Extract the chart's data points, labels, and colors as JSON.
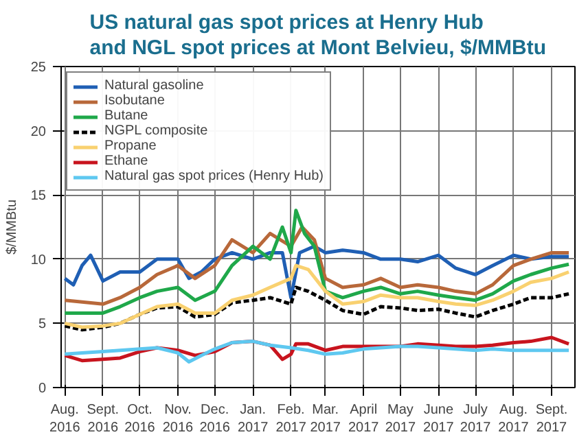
{
  "chart_data": {
    "type": "line",
    "title": "US natural gas spot prices at Henry Hub\nand NGL spot prices at Mont Belvieu, $/MMBtu",
    "ylabel": "$/MMBtu",
    "series": [
      {
        "name": "Natural gasoline",
        "color": "#1f5fb4",
        "x": [
          "2016-08-01",
          "2016-08-08",
          "2016-08-15",
          "2016-08-22",
          "2016-09-01",
          "2016-09-15",
          "2016-10-01",
          "2016-10-15",
          "2016-11-01",
          "2016-11-10",
          "2016-11-20",
          "2016-12-01",
          "2016-12-15",
          "2017-01-01",
          "2017-01-15",
          "2017-01-25",
          "2017-02-01",
          "2017-02-08",
          "2017-02-20",
          "2017-03-01",
          "2017-03-15",
          "2017-04-01",
          "2017-04-15",
          "2017-05-01",
          "2017-05-15",
          "2017-06-01",
          "2017-06-15",
          "2017-07-01",
          "2017-07-15",
          "2017-08-01",
          "2017-08-15",
          "2017-09-01",
          "2017-09-15"
        ],
        "values": [
          8.5,
          8.0,
          9.5,
          10.3,
          8.3,
          9.0,
          9.0,
          10.0,
          10.0,
          8.5,
          9.0,
          10.0,
          10.5,
          10.0,
          10.5,
          10.5,
          7.0,
          10.5,
          11.0,
          10.5,
          10.7,
          10.5,
          10.0,
          10.0,
          9.8,
          10.3,
          9.3,
          8.8,
          9.5,
          10.3,
          10.0,
          10.2,
          10.2
        ]
      },
      {
        "name": "Isobutane",
        "color": "#b8683a",
        "x": [
          "2016-08-01",
          "2016-09-01",
          "2016-09-15",
          "2016-10-01",
          "2016-10-15",
          "2016-11-01",
          "2016-11-15",
          "2016-12-01",
          "2016-12-15",
          "2017-01-01",
          "2017-01-15",
          "2017-02-01",
          "2017-02-10",
          "2017-02-20",
          "2017-03-01",
          "2017-03-15",
          "2017-04-01",
          "2017-04-15",
          "2017-05-01",
          "2017-05-15",
          "2017-06-01",
          "2017-06-15",
          "2017-07-01",
          "2017-07-15",
          "2017-08-01",
          "2017-08-15",
          "2017-09-01",
          "2017-09-15"
        ],
        "values": [
          6.8,
          6.5,
          7.0,
          7.8,
          8.8,
          9.5,
          8.5,
          9.5,
          11.5,
          10.5,
          12.0,
          11.0,
          12.5,
          11.5,
          8.5,
          7.8,
          8.0,
          8.5,
          7.8,
          8.0,
          7.8,
          7.5,
          7.3,
          8.0,
          9.5,
          10.0,
          10.5,
          10.5
        ]
      },
      {
        "name": "Butane",
        "color": "#1fa84a",
        "x": [
          "2016-08-01",
          "2016-09-01",
          "2016-09-15",
          "2016-10-01",
          "2016-10-15",
          "2016-11-01",
          "2016-11-15",
          "2016-12-01",
          "2016-12-15",
          "2017-01-01",
          "2017-01-15",
          "2017-01-25",
          "2017-02-01",
          "2017-02-05",
          "2017-02-12",
          "2017-02-20",
          "2017-03-01",
          "2017-03-15",
          "2017-04-01",
          "2017-04-15",
          "2017-05-01",
          "2017-05-15",
          "2017-06-01",
          "2017-06-15",
          "2017-07-01",
          "2017-07-15",
          "2017-08-01",
          "2017-08-15",
          "2017-09-01",
          "2017-09-15"
        ],
        "values": [
          5.8,
          5.8,
          6.3,
          7.0,
          7.5,
          7.8,
          6.8,
          7.5,
          9.5,
          11.0,
          10.0,
          12.5,
          10.5,
          13.8,
          12.0,
          11.0,
          7.5,
          7.0,
          7.5,
          7.8,
          7.3,
          7.5,
          7.2,
          7.0,
          6.8,
          7.3,
          8.3,
          8.8,
          9.3,
          9.6
        ]
      },
      {
        "name": "NGPL composite",
        "color": "#000000",
        "line_style": "dashed",
        "x": [
          "2016-08-01",
          "2016-08-15",
          "2016-09-01",
          "2016-09-15",
          "2016-10-01",
          "2016-10-15",
          "2016-11-01",
          "2016-11-15",
          "2016-12-01",
          "2016-12-15",
          "2017-01-01",
          "2017-01-15",
          "2017-02-01",
          "2017-02-05",
          "2017-02-15",
          "2017-03-01",
          "2017-03-15",
          "2017-04-01",
          "2017-04-15",
          "2017-05-01",
          "2017-05-15",
          "2017-06-01",
          "2017-06-15",
          "2017-07-01",
          "2017-07-15",
          "2017-08-01",
          "2017-08-15",
          "2017-09-01",
          "2017-09-15"
        ],
        "values": [
          4.8,
          4.5,
          4.7,
          5.0,
          5.7,
          6.2,
          6.3,
          5.5,
          5.7,
          6.6,
          6.8,
          7.0,
          6.5,
          7.8,
          7.5,
          6.8,
          6.0,
          5.7,
          6.3,
          6.2,
          6.0,
          6.1,
          5.8,
          5.5,
          6.0,
          6.5,
          7.0,
          7.0,
          7.3
        ]
      },
      {
        "name": "Propane",
        "color": "#f9d170",
        "x": [
          "2016-08-01",
          "2016-08-15",
          "2016-09-01",
          "2016-09-15",
          "2016-10-01",
          "2016-10-15",
          "2016-11-01",
          "2016-11-15",
          "2016-12-01",
          "2016-12-15",
          "2017-01-01",
          "2017-01-15",
          "2017-02-01",
          "2017-02-05",
          "2017-02-15",
          "2017-03-01",
          "2017-03-15",
          "2017-04-01",
          "2017-04-15",
          "2017-05-01",
          "2017-05-15",
          "2017-06-01",
          "2017-06-15",
          "2017-07-01",
          "2017-07-15",
          "2017-08-01",
          "2017-08-15",
          "2017-09-01",
          "2017-09-15"
        ],
        "values": [
          5.0,
          4.7,
          4.8,
          5.0,
          5.7,
          6.3,
          6.5,
          5.8,
          5.8,
          6.8,
          7.2,
          7.8,
          8.5,
          9.5,
          9.2,
          7.5,
          6.5,
          6.7,
          7.2,
          7.0,
          7.0,
          6.7,
          6.5,
          6.4,
          6.8,
          7.5,
          8.2,
          8.5,
          9.0
        ]
      },
      {
        "name": "Ethane",
        "color": "#c8141e",
        "x": [
          "2016-08-01",
          "2016-08-15",
          "2016-09-01",
          "2016-09-15",
          "2016-10-01",
          "2016-10-15",
          "2016-11-01",
          "2016-11-15",
          "2016-12-01",
          "2016-12-15",
          "2017-01-01",
          "2017-01-15",
          "2017-01-25",
          "2017-02-01",
          "2017-02-05",
          "2017-02-15",
          "2017-03-01",
          "2017-03-15",
          "2017-04-01",
          "2017-04-15",
          "2017-05-01",
          "2017-05-15",
          "2017-06-01",
          "2017-06-15",
          "2017-07-01",
          "2017-07-15",
          "2017-08-01",
          "2017-08-15",
          "2017-09-01",
          "2017-09-15"
        ],
        "values": [
          2.5,
          2.1,
          2.2,
          2.3,
          2.8,
          3.1,
          2.9,
          2.5,
          2.8,
          3.5,
          3.6,
          3.3,
          2.2,
          2.6,
          3.4,
          3.4,
          2.9,
          3.2,
          3.2,
          3.2,
          3.2,
          3.4,
          3.3,
          3.2,
          3.2,
          3.3,
          3.5,
          3.6,
          3.9,
          3.4
        ]
      },
      {
        "name": "Natural gas spot prices (Henry Hub)",
        "color": "#5ec8f0",
        "x": [
          "2016-08-01",
          "2016-08-15",
          "2016-09-01",
          "2016-09-15",
          "2016-10-01",
          "2016-10-15",
          "2016-11-01",
          "2016-11-10",
          "2016-11-20",
          "2016-12-01",
          "2016-12-15",
          "2017-01-01",
          "2017-01-15",
          "2017-02-01",
          "2017-02-15",
          "2017-03-01",
          "2017-03-15",
          "2017-04-01",
          "2017-04-15",
          "2017-05-01",
          "2017-05-15",
          "2017-06-01",
          "2017-06-15",
          "2017-07-01",
          "2017-07-15",
          "2017-08-01",
          "2017-08-15",
          "2017-09-01",
          "2017-09-15"
        ],
        "values": [
          2.6,
          2.7,
          2.8,
          2.9,
          3.0,
          3.1,
          2.7,
          2.0,
          2.5,
          3.0,
          3.5,
          3.6,
          3.3,
          3.1,
          2.9,
          2.6,
          2.7,
          3.0,
          3.1,
          3.2,
          3.2,
          3.1,
          3.0,
          2.9,
          3.0,
          2.9,
          2.9,
          2.9,
          2.9
        ]
      }
    ],
    "xlim": [
      "2016-07-29",
      "2017-09-20"
    ],
    "xticks": [
      {
        "value": "2016-08-01",
        "label": "Aug.\n2016"
      },
      {
        "value": "2016-09-01",
        "label": "Sept.\n2016"
      },
      {
        "value": "2016-10-01",
        "label": "Oct.\n2016"
      },
      {
        "value": "2016-11-01",
        "label": "Nov.\n2016"
      },
      {
        "value": "2016-12-01",
        "label": "Dec.\n2016"
      },
      {
        "value": "2017-01-01",
        "label": "Jan.\n2017"
      },
      {
        "value": "2017-02-01",
        "label": "Feb.\n2017"
      },
      {
        "value": "2017-03-01",
        "label": "Mar.\n2017"
      },
      {
        "value": "2017-04-01",
        "label": "April\n2017"
      },
      {
        "value": "2017-05-01",
        "label": "May\n2017"
      },
      {
        "value": "2017-06-01",
        "label": "June\n2017"
      },
      {
        "value": "2017-07-01",
        "label": "July\n2017"
      },
      {
        "value": "2017-08-01",
        "label": "Aug.\n2017"
      },
      {
        "value": "2017-09-01",
        "label": "Sept.\n2017"
      }
    ],
    "ylim": [
      0,
      25
    ],
    "yticks": [
      0,
      5,
      10,
      15,
      20,
      25
    ],
    "grid": true,
    "legend": "top left",
    "marker": "none",
    "line_style": "solid"
  }
}
